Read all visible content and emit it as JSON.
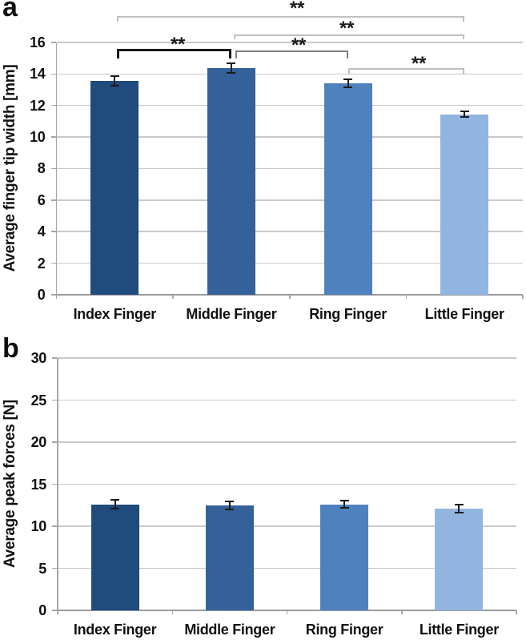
{
  "figure": {
    "background": "#ffffff",
    "text_color": "#1a1a1a",
    "gridline_color": "#c9c9c9",
    "axis_color": "#a6a6a6",
    "bracket_colors": {
      "light": "#bfbfbf",
      "dark": "#7f7f7f",
      "black": "#1a1a1a"
    }
  },
  "chart_data": [
    {
      "type": "bar",
      "panel_label": "a",
      "title": "",
      "xlabel": "",
      "ylabel": "Average finger tip width [mm]",
      "categories": [
        "Index Finger",
        "Middle Finger",
        "Ring Finger",
        "Little Finger"
      ],
      "values": [
        13.55,
        14.35,
        13.4,
        11.45
      ],
      "errors": [
        0.3,
        0.3,
        0.25,
        0.2
      ],
      "ylim": [
        0,
        16
      ],
      "ytick_step": 2,
      "yticks": [
        0,
        2,
        4,
        6,
        8,
        10,
        12,
        14,
        16
      ],
      "grid": true,
      "legend": "none",
      "bar_colors": [
        "#1F4B7D",
        "#35619B",
        "#4E81BE",
        "#92B4E1"
      ],
      "significance": [
        {
          "pair": [
            "Index Finger",
            "Little Finger"
          ],
          "label": "**"
        },
        {
          "pair": [
            "Middle Finger",
            "Little Finger"
          ],
          "label": "**"
        },
        {
          "pair": [
            "Index Finger",
            "Middle Finger"
          ],
          "label": "**"
        },
        {
          "pair": [
            "Middle Finger",
            "Ring Finger"
          ],
          "label": "**"
        },
        {
          "pair": [
            "Ring Finger",
            "Little Finger"
          ],
          "label": "**"
        }
      ]
    },
    {
      "type": "bar",
      "panel_label": "b",
      "title": "",
      "xlabel": "",
      "ylabel": "Average peak forces [N]",
      "categories": [
        "Index Finger",
        "Middle Finger",
        "Ring Finger",
        "Little Finger"
      ],
      "values": [
        12.6,
        12.5,
        12.6,
        12.1
      ],
      "errors": [
        0.5,
        0.5,
        0.45,
        0.45
      ],
      "ylim": [
        0,
        30
      ],
      "ytick_step": 5,
      "yticks": [
        0,
        5,
        10,
        15,
        20,
        25,
        30
      ],
      "grid": true,
      "legend": "none",
      "bar_colors": [
        "#1F4B7D",
        "#35619B",
        "#4E81BE",
        "#92B4E1"
      ],
      "significance": []
    }
  ]
}
